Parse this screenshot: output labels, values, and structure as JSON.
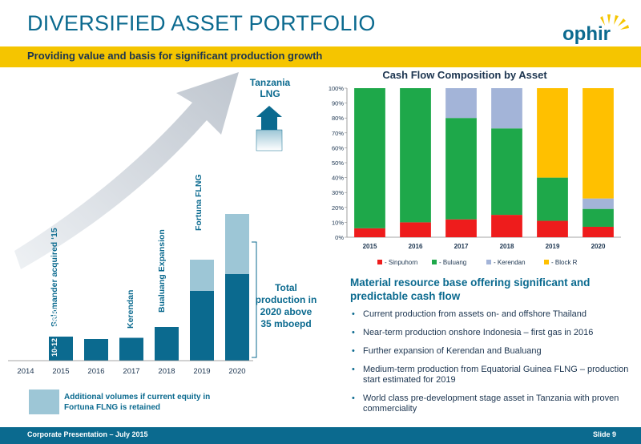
{
  "header": {
    "title": "DIVERSIFIED ASSET PORTFOLIO",
    "subtitle": "Providing value and basis for significant production growth",
    "logo_text": "ophir"
  },
  "production_chart": {
    "years": [
      "2014",
      "2015",
      "2016",
      "2017",
      "2018",
      "2019",
      "2020"
    ],
    "base_values": [
      0,
      1,
      0.9,
      0.95,
      1.4,
      2.9,
      3.6
    ],
    "additional_values": [
      0,
      0,
      0,
      0,
      0,
      1.3,
      2.5
    ],
    "annotations": {
      "salamander": "Salamander acquired ‘15",
      "mboepd": "10-12 mboepd",
      "kerendan": "Kerendan",
      "bualuang": "Bualuang Expansion",
      "fortuna": "Fortuna FLNG",
      "tanzania": "Tanzania LNG"
    },
    "total_note": "Total production in 2020 above 35 mboepd",
    "legend_text": "Additional volumes if current equity in Fortuna FLNG is retained"
  },
  "chart_data": {
    "type": "bar",
    "stacked": true,
    "title": "Cash Flow Composition by Asset",
    "categories": [
      "2015",
      "2016",
      "2017",
      "2018",
      "2019",
      "2020"
    ],
    "series": [
      {
        "name": "Sinpuhorn",
        "color": "#ee1c1c",
        "values": [
          6,
          10,
          12,
          15,
          11,
          7
        ]
      },
      {
        "name": "Buluang",
        "color": "#1ea84a",
        "values": [
          94,
          90,
          68,
          58,
          29,
          12
        ]
      },
      {
        "name": "Kerendan",
        "color": "#a3b4d8",
        "values": [
          0,
          0,
          20,
          27,
          0,
          7
        ]
      },
      {
        "name": "Block R",
        "color": "#ffc000",
        "values": [
          0,
          0,
          0,
          0,
          60,
          74
        ]
      }
    ],
    "yticks": [
      "0%",
      "10%",
      "20%",
      "30%",
      "40%",
      "50%",
      "60%",
      "70%",
      "80%",
      "90%",
      "100%"
    ],
    "ylim": [
      0,
      100
    ],
    "legend_labels": [
      "- Sinpuhorn",
      "- Buluang",
      "- Kerendan",
      "- Block R"
    ],
    "legend_position": "bottom"
  },
  "content": {
    "heading": "Material resource base offering significant and predictable cash flow",
    "bullets": [
      "Current production from assets on- and offshore Thailand",
      "Near-term production onshore Indonesia – first gas in 2016",
      "Further expansion of Kerendan and Bualuang",
      "Medium-term production from Equatorial Guinea FLNG – production start estimated for 2019",
      "World class pre-development stage asset in Tanzania with proven commerciality"
    ]
  },
  "footer": {
    "left": "Corporate Presentation – July 2015",
    "right": "Slide 9"
  },
  "colors": {
    "brand_blue": "#0b6a8f",
    "accent_yellow": "#f5c500",
    "light_blue": "#9dc6d6"
  }
}
